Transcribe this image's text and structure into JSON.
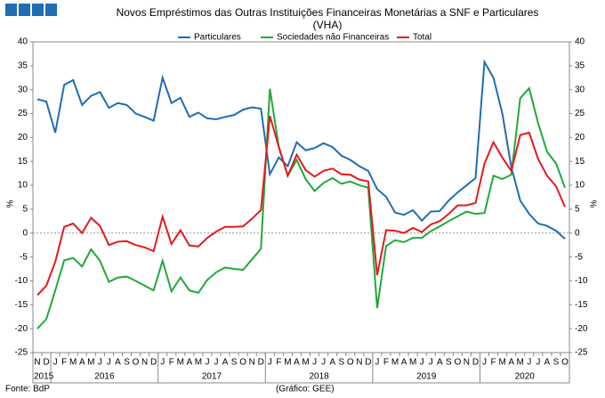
{
  "chart_data": {
    "type": "line",
    "title": "Novos Empréstimos das Outras Instituições Financeiras Monetárias a SNF e Particulares",
    "subtitle": "(VHA)",
    "ylabel": "%",
    "y2label": "%",
    "source": "Fonte: BdP",
    "note": "(Gráfico: GEE)",
    "categories": [
      "N",
      "D",
      "J",
      "F",
      "M",
      "A",
      "M",
      "J",
      "J",
      "A",
      "S",
      "O",
      "N",
      "D",
      "J",
      "F",
      "M",
      "A",
      "M",
      "J",
      "J",
      "A",
      "S",
      "O",
      "N",
      "D",
      "J",
      "F",
      "M",
      "A",
      "M",
      "J",
      "J",
      "A",
      "S",
      "O",
      "N",
      "D",
      "J",
      "F",
      "M",
      "A",
      "M",
      "J",
      "J",
      "A",
      "S",
      "O",
      "N",
      "D",
      "J",
      "F",
      "M",
      "A",
      "M",
      "J",
      "J",
      "A",
      "S",
      "O"
    ],
    "years": [
      "2015",
      "2016",
      "2017",
      "2018",
      "2019",
      "2020"
    ],
    "ylim": [
      -25,
      40
    ],
    "yticks": [
      -25,
      -20,
      -15,
      -10,
      -5,
      0,
      5,
      10,
      15,
      20,
      25,
      30,
      35,
      40
    ],
    "y2lim": [
      -25,
      40
    ],
    "y2ticks": [
      -25,
      -20,
      -15,
      -10,
      -5,
      0,
      5,
      10,
      15,
      20,
      25,
      30,
      35,
      40
    ],
    "legend": "top",
    "series": [
      {
        "name": "Particulares",
        "color": "#1f6db5",
        "values": [
          28,
          27.5,
          21,
          31,
          32,
          26.8,
          28.7,
          29.5,
          26.2,
          27.2,
          26.8,
          25,
          24.3,
          23.5,
          32.5,
          27.2,
          28.3,
          24.3,
          25.2,
          24,
          23.8,
          24.3,
          24.7,
          25.8,
          26.3,
          26,
          12.3,
          15.8,
          14,
          19,
          17.3,
          17.8,
          18.8,
          18,
          16.2,
          15.3,
          14,
          13,
          9.2,
          7.6,
          4.3,
          3.8,
          4.8,
          2.6,
          4.5,
          4.6,
          6.8,
          8.5,
          10,
          11.5,
          35.8,
          32.5,
          25,
          13.8,
          6.8,
          4,
          2,
          1.5,
          0.5,
          -1.2
        ]
      },
      {
        "name": "Sociedades não Financeiras",
        "color": "#22a83a",
        "values": [
          -20,
          -18,
          -12,
          -5.7,
          -5.2,
          -7,
          -3.4,
          -5.8,
          -10.2,
          -9.3,
          -9.1,
          -10,
          -11,
          -12,
          -5.8,
          -12.2,
          -9.3,
          -12,
          -12.5,
          -9.8,
          -8.2,
          -7.2,
          -7.5,
          -7.7,
          -5.5,
          -3.3,
          30.2,
          18,
          12,
          15.3,
          11.3,
          8.8,
          10.5,
          11.5,
          10.3,
          10.8,
          10,
          9.5,
          -15.7,
          -2.7,
          -1.5,
          -1.9,
          -1,
          -1,
          0.4,
          1.4,
          2.5,
          3.5,
          4.5,
          4,
          4.2,
          12,
          11.3,
          12.2,
          28.2,
          30.3,
          23,
          17,
          14.6,
          9.5
        ]
      },
      {
        "name": "Total",
        "color": "#e31a1c",
        "values": [
          -13,
          -11,
          -6,
          1.3,
          2,
          0,
          3.2,
          1.5,
          -2.5,
          -1.8,
          -1.7,
          -2.5,
          -3,
          -3.8,
          3.4,
          -2.3,
          0.6,
          -2.6,
          -2.8,
          -1,
          0.3,
          1.3,
          1.3,
          1.4,
          3,
          4.8,
          24.5,
          18,
          12,
          16.4,
          13.2,
          11.8,
          13,
          13.5,
          12.3,
          12.2,
          11.2,
          10.8,
          -8.8,
          0.6,
          0.5,
          0,
          1.1,
          0.2,
          1.8,
          2.5,
          4,
          5.8,
          5.8,
          6.3,
          14.5,
          19,
          15.8,
          13,
          20.5,
          21,
          15.5,
          12,
          9.8,
          5.5
        ]
      }
    ]
  }
}
